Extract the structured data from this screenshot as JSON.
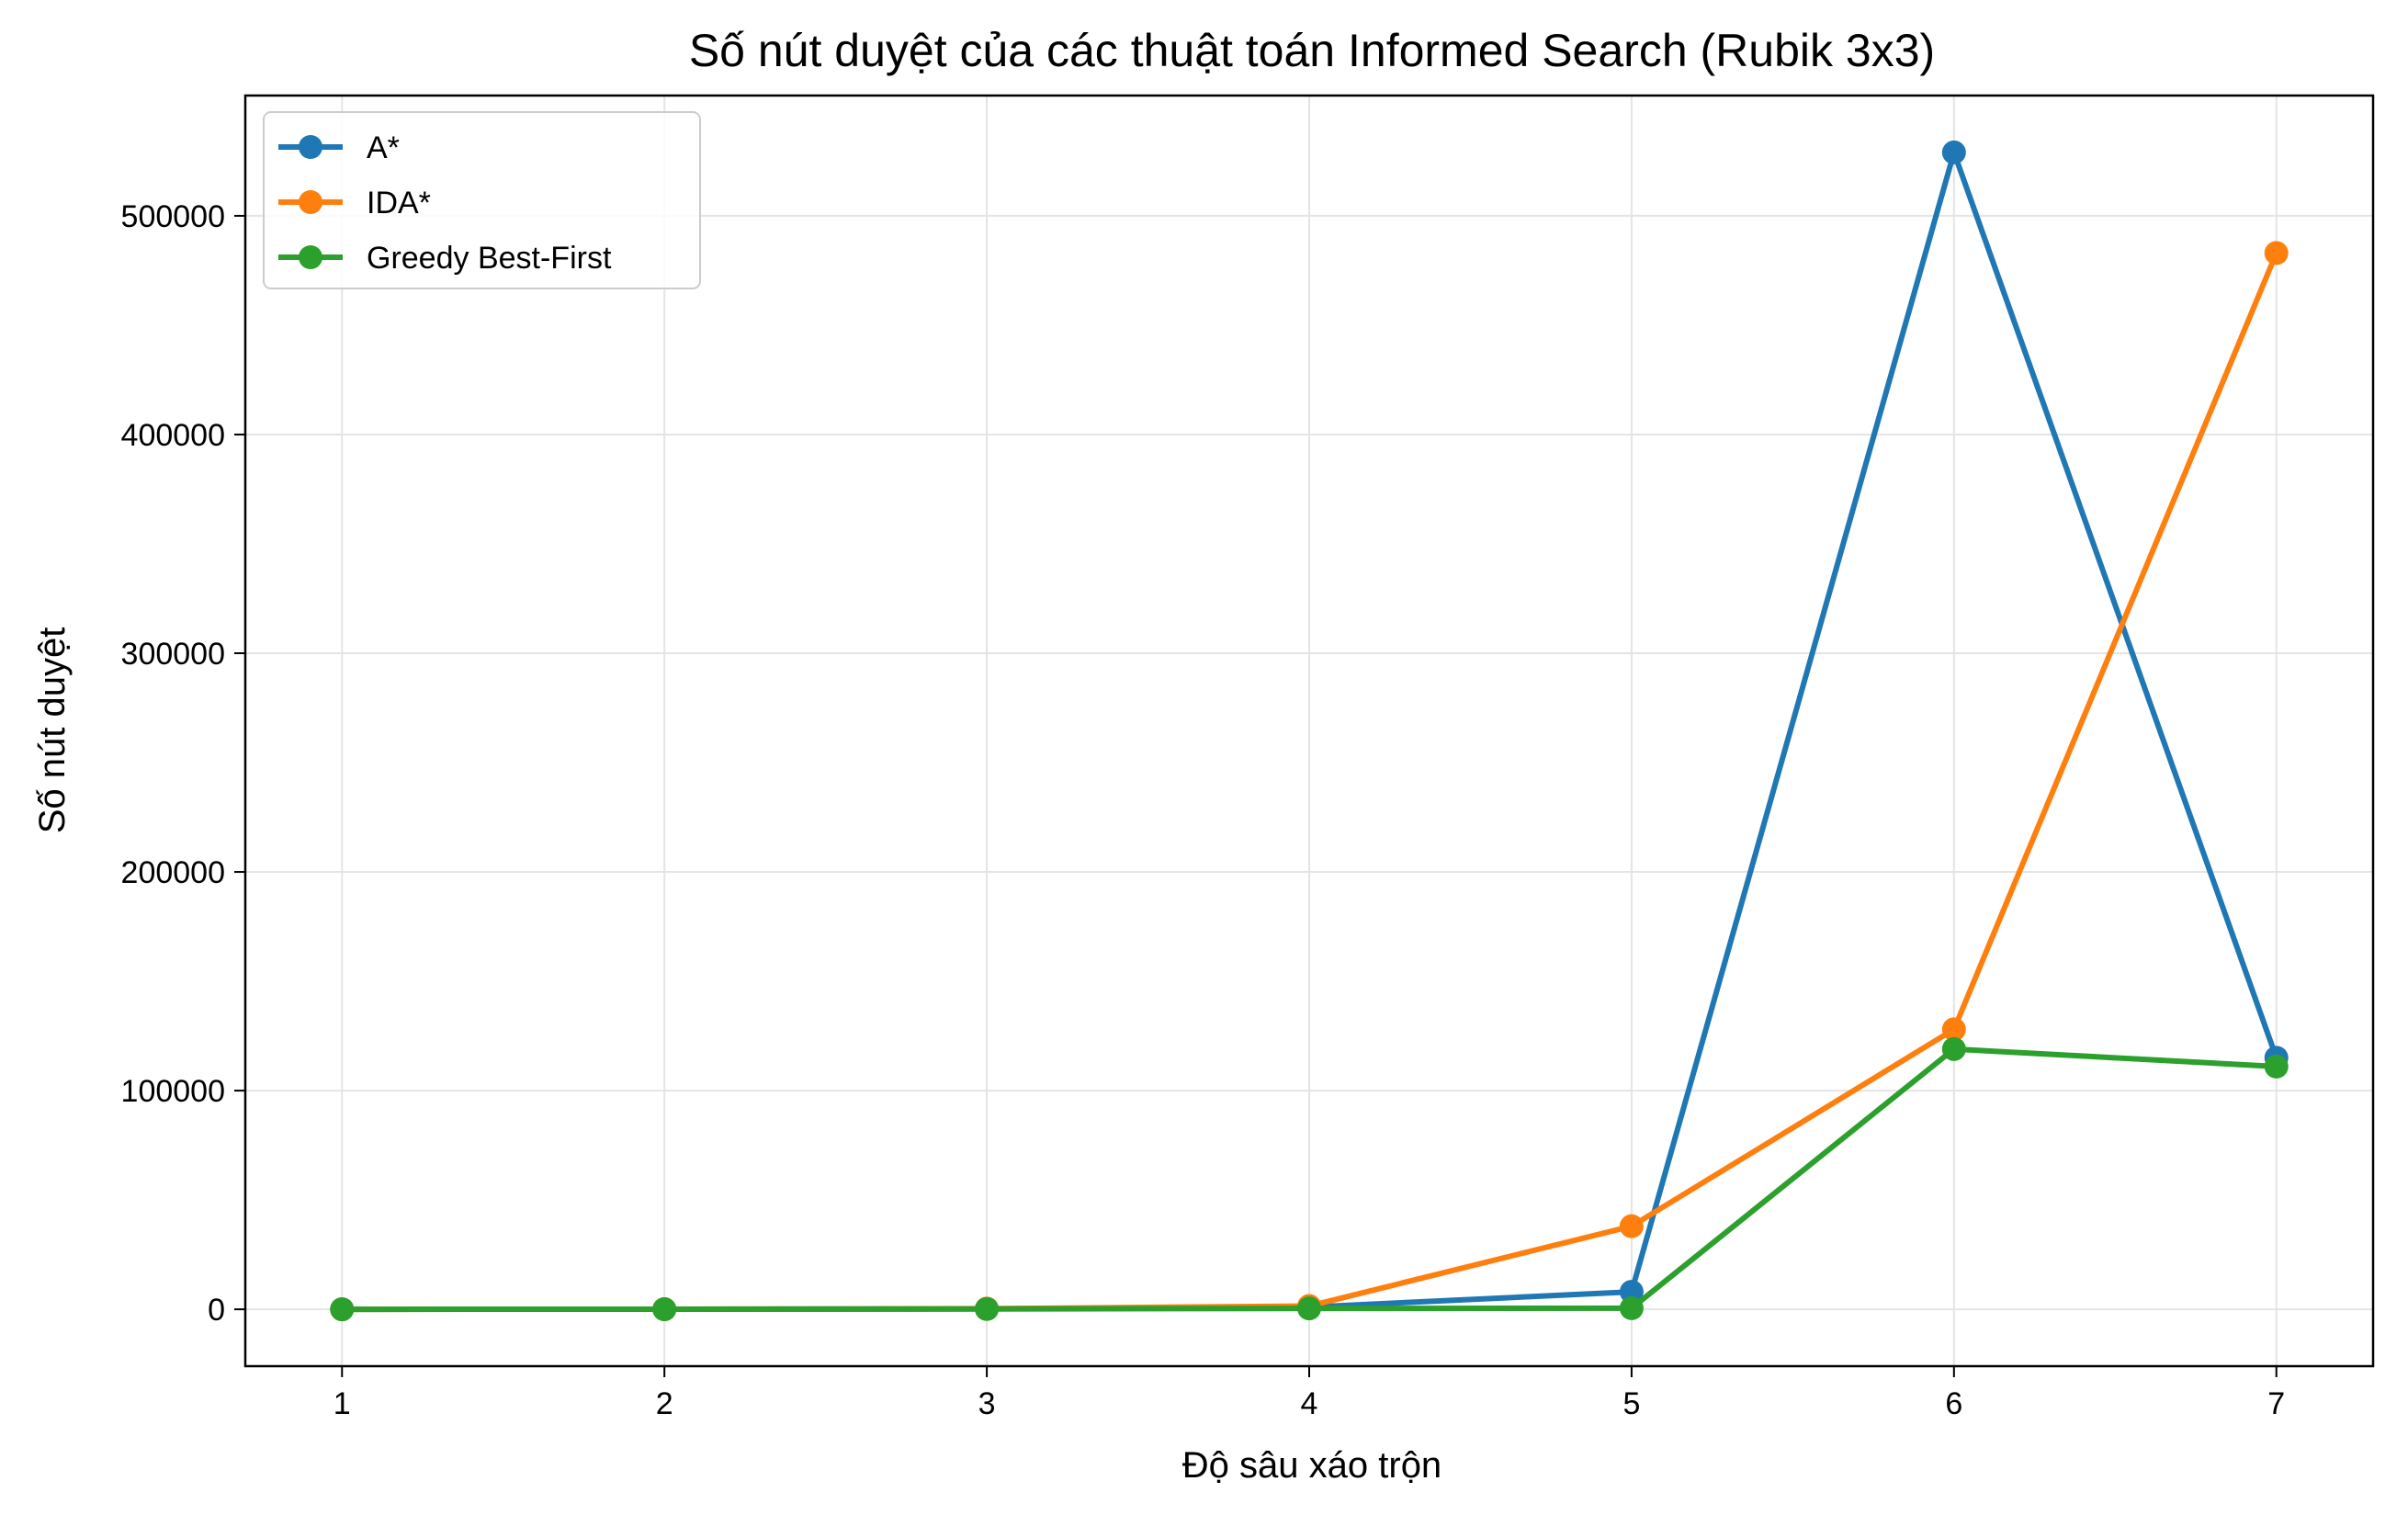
{
  "chart_data": {
    "type": "line",
    "title": "Số nút duyệt của các thuật toán Informed Search (Rubik 3x3)",
    "xlabel": "Độ sâu xáo trộn",
    "ylabel": "Số nút duyệt",
    "x": [
      1,
      2,
      3,
      4,
      5,
      6,
      7
    ],
    "xlim": [
      0.7,
      7.3
    ],
    "ylim": [
      -26000,
      555000
    ],
    "xticks": [
      1,
      2,
      3,
      4,
      5,
      6,
      7
    ],
    "yticks": [
      0,
      100000,
      200000,
      300000,
      400000,
      500000
    ],
    "grid": true,
    "legend_position": "top-left",
    "series": [
      {
        "name": "A*",
        "color": "#1f77b4",
        "values": [
          10,
          50,
          200,
          1000,
          8000,
          529000,
          115000
        ]
      },
      {
        "name": "IDA*",
        "color": "#ff7f0e",
        "values": [
          10,
          60,
          300,
          1500,
          38000,
          128000,
          483000
        ]
      },
      {
        "name": "Greedy Best-First",
        "color": "#2ca02c",
        "values": [
          10,
          40,
          150,
          400,
          500,
          119000,
          111000
        ]
      }
    ]
  }
}
